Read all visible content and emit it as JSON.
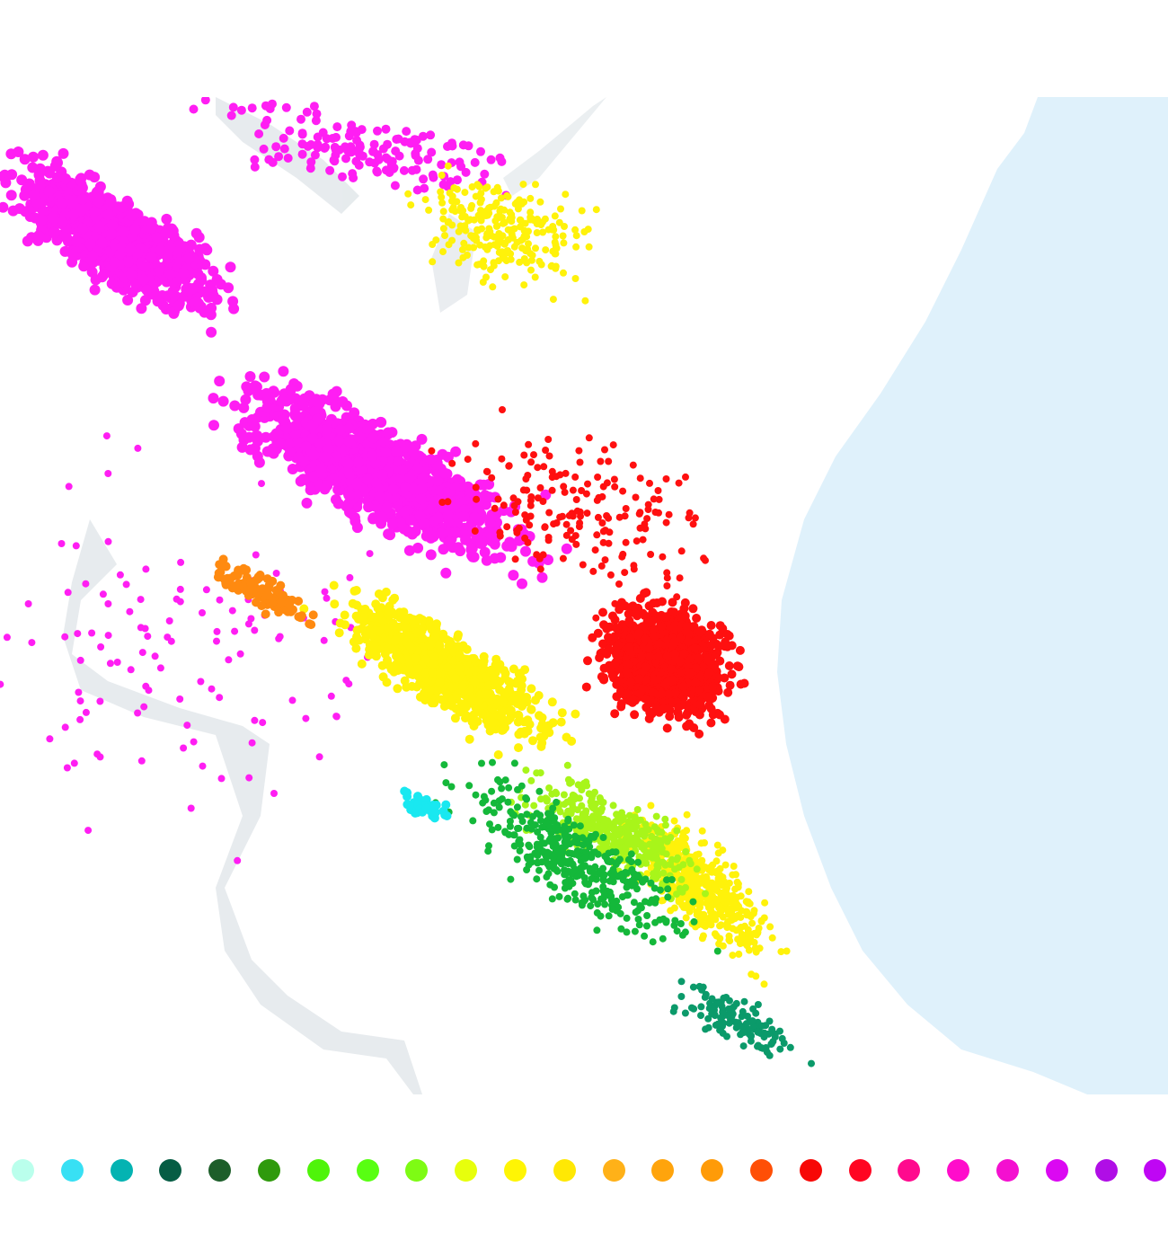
{
  "map": {
    "land_color": "#ffffff",
    "water_color": "#dff1fb",
    "shadow_color": "#c9d3da"
  },
  "legend": {
    "colors": [
      "#baffec",
      "#38e0f4",
      "#04b3b2",
      "#065d44",
      "#1d5e2a",
      "#2f9a0c",
      "#4ff40a",
      "#58ff12",
      "#7efb14",
      "#e7ff0c",
      "#fff504",
      "#ffe804",
      "#ffb118",
      "#ffa40c",
      "#ff9b08",
      "#ff4f06",
      "#f70806",
      "#ff0522",
      "#ff0a8e",
      "#ff0ccb",
      "#f410d0",
      "#db08f2",
      "#b00ee6",
      "#bf06f4"
    ]
  },
  "clusters": {
    "magenta": "#ff1ef3",
    "red": "#ff1010",
    "yellow": "#fff20a",
    "lime": "#a8f51a",
    "green": "#14b83a",
    "teal": "#0b9a6a",
    "orange": "#ff8a10",
    "cyan": "#19e8f0"
  }
}
